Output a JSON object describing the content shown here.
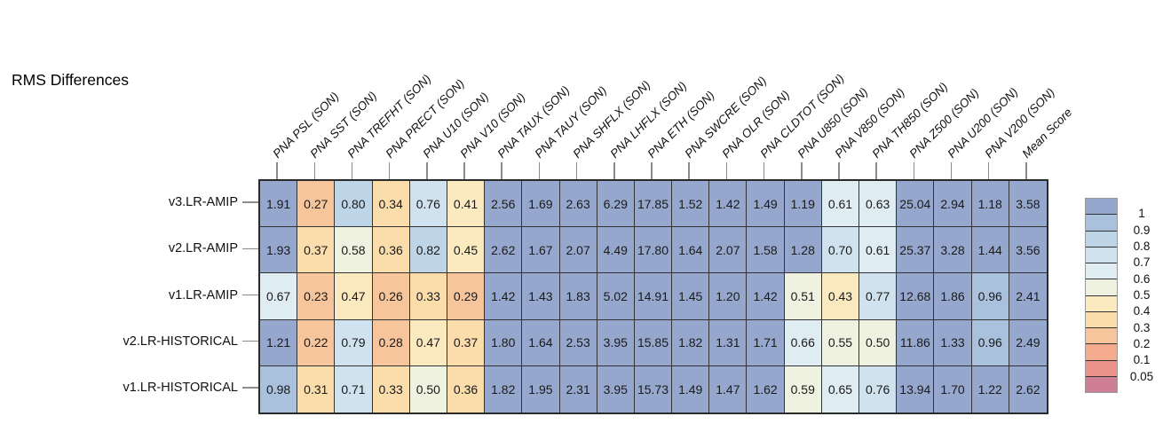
{
  "chart_data": {
    "type": "heatmap",
    "title": "RMS Differences",
    "legend_position": "right",
    "columns": [
      "PNA PSL (SON)",
      "PNA SST (SON)",
      "PNA TREFHT (SON)",
      "PNA PRECT (SON)",
      "PNA U10 (SON)",
      "PNA V10 (SON)",
      "PNA TAUX (SON)",
      "PNA TAUY (SON)",
      "PNA SHFLX (SON)",
      "PNA LHFLX (SON)",
      "PNA ETH (SON)",
      "PNA SWCRE (SON)",
      "PNA OLR (SON)",
      "PNA CLDTOT (SON)",
      "PNA U850 (SON)",
      "PNA V850 (SON)",
      "PNA TH850 (SON)",
      "PNA Z500 (SON)",
      "PNA U200 (SON)",
      "PNA V200 (SON)",
      "Mean Score"
    ],
    "rows": [
      "v3.LR-AMIP",
      "v2.LR-AMIP",
      "v1.LR-AMIP",
      "v2.LR-HISTORICAL",
      "v1.LR-HISTORICAL"
    ],
    "values": [
      [
        "1.91",
        "0.27",
        "0.80",
        "0.34",
        "0.76",
        "0.41",
        "2.56",
        "1.69",
        "2.63",
        "6.29",
        "17.85",
        "1.52",
        "1.42",
        "1.49",
        "1.19",
        "0.61",
        "0.63",
        "25.04",
        "2.94",
        "1.18",
        "3.58"
      ],
      [
        "1.93",
        "0.37",
        "0.58",
        "0.36",
        "0.82",
        "0.45",
        "2.62",
        "1.67",
        "2.07",
        "4.49",
        "17.80",
        "1.64",
        "2.07",
        "1.58",
        "1.28",
        "0.70",
        "0.61",
        "25.37",
        "3.28",
        "1.44",
        "3.56"
      ],
      [
        "0.67",
        "0.23",
        "0.47",
        "0.26",
        "0.33",
        "0.29",
        "1.42",
        "1.43",
        "1.83",
        "5.02",
        "14.91",
        "1.45",
        "1.20",
        "1.42",
        "0.51",
        "0.43",
        "0.77",
        "12.68",
        "1.86",
        "0.96",
        "2.41"
      ],
      [
        "1.21",
        "0.22",
        "0.79",
        "0.28",
        "0.47",
        "0.37",
        "1.80",
        "1.64",
        "2.53",
        "3.95",
        "15.85",
        "1.82",
        "1.31",
        "1.71",
        "0.66",
        "0.55",
        "0.50",
        "11.86",
        "1.33",
        "0.96",
        "2.49"
      ],
      [
        "0.98",
        "0.31",
        "0.71",
        "0.33",
        "0.50",
        "0.36",
        "1.82",
        "1.95",
        "2.31",
        "3.95",
        "15.73",
        "1.49",
        "1.47",
        "1.62",
        "0.59",
        "0.65",
        "0.76",
        "13.94",
        "1.70",
        "1.22",
        "2.62"
      ]
    ],
    "colorbar": {
      "boundary_labels": [
        "1",
        "0.9",
        "0.8",
        "0.7",
        "0.6",
        "0.5",
        "0.4",
        "0.3",
        "0.2",
        "0.1",
        "0.05"
      ],
      "boundaries": [
        1,
        0.9,
        0.8,
        0.7,
        0.6,
        0.5,
        0.4,
        0.3,
        0.2,
        0.1,
        0.05
      ],
      "band_colors": [
        "#96a7ce",
        "#aac1dd",
        "#bed5e7",
        "#cfe2ee",
        "#dfecf2",
        "#eff2e0",
        "#fbe9c0",
        "#fbdcab",
        "#f7c59c",
        "#f3aa8d",
        "#e9938b",
        "#ce7f96"
      ]
    },
    "style_colors": {
      "grid_line": "#333333",
      "outer_border": "#2a2a2a",
      "tick": "#8c8c8c",
      "cell_text": "#1a1a1a"
    }
  }
}
